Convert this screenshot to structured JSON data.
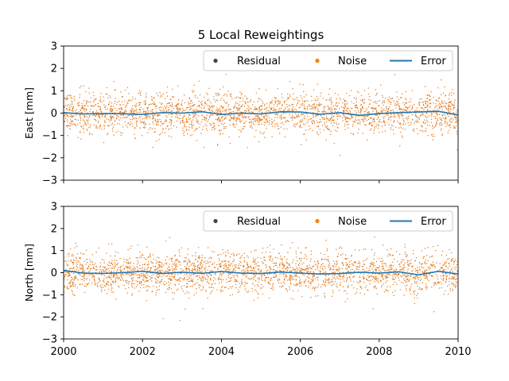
{
  "chart_data": {
    "type": "scatter",
    "title": "5 Local Reweightings",
    "x_range": [
      2000,
      2010
    ],
    "x_ticks": [
      "2000",
      "2002",
      "2004",
      "2006",
      "2008",
      "2010"
    ],
    "y_ticks": [
      "−3",
      "−2",
      "−1",
      "0",
      "1",
      "2",
      "3"
    ],
    "legend_placement": "top-right",
    "colors": {
      "residual": "#444444",
      "noise": "#ff7f0e",
      "error": "#1f77b4"
    },
    "panels": [
      {
        "ylabel": "East [mm]",
        "ylim": [
          -3,
          3
        ],
        "legend": [
          "Residual",
          "Noise",
          "Error"
        ],
        "noise_std_mm": 0.45,
        "error_series": {
          "x": [
            2000.0,
            2000.5,
            2001.0,
            2001.5,
            2002.0,
            2002.5,
            2003.0,
            2003.5,
            2004.0,
            2004.5,
            2005.0,
            2005.5,
            2006.0,
            2006.5,
            2007.0,
            2007.5,
            2008.0,
            2008.5,
            2009.0,
            2009.5,
            2010.0
          ],
          "y": [
            0.02,
            -0.04,
            -0.02,
            -0.03,
            -0.06,
            0.02,
            0.0,
            0.06,
            -0.06,
            0.0,
            -0.04,
            0.06,
            0.05,
            -0.05,
            0.02,
            -0.1,
            -0.02,
            0.02,
            0.05,
            0.08,
            -0.08
          ]
        }
      },
      {
        "ylabel": "North [mm]",
        "ylim": [
          -3,
          3
        ],
        "legend": [
          "Residual",
          "Noise",
          "Error"
        ],
        "noise_std_mm": 0.45,
        "error_series": {
          "x": [
            2000.0,
            2000.5,
            2001.0,
            2001.5,
            2002.0,
            2002.5,
            2003.0,
            2003.5,
            2004.0,
            2004.5,
            2005.0,
            2005.5,
            2006.0,
            2006.5,
            2007.0,
            2007.5,
            2008.0,
            2008.5,
            2009.0,
            2009.5,
            2010.0
          ],
          "y": [
            0.1,
            -0.02,
            -0.04,
            0.0,
            0.06,
            -0.04,
            0.02,
            -0.03,
            0.05,
            -0.02,
            -0.04,
            0.03,
            -0.02,
            -0.06,
            -0.04,
            0.02,
            -0.02,
            0.04,
            -0.1,
            0.06,
            -0.06
          ]
        }
      }
    ]
  }
}
